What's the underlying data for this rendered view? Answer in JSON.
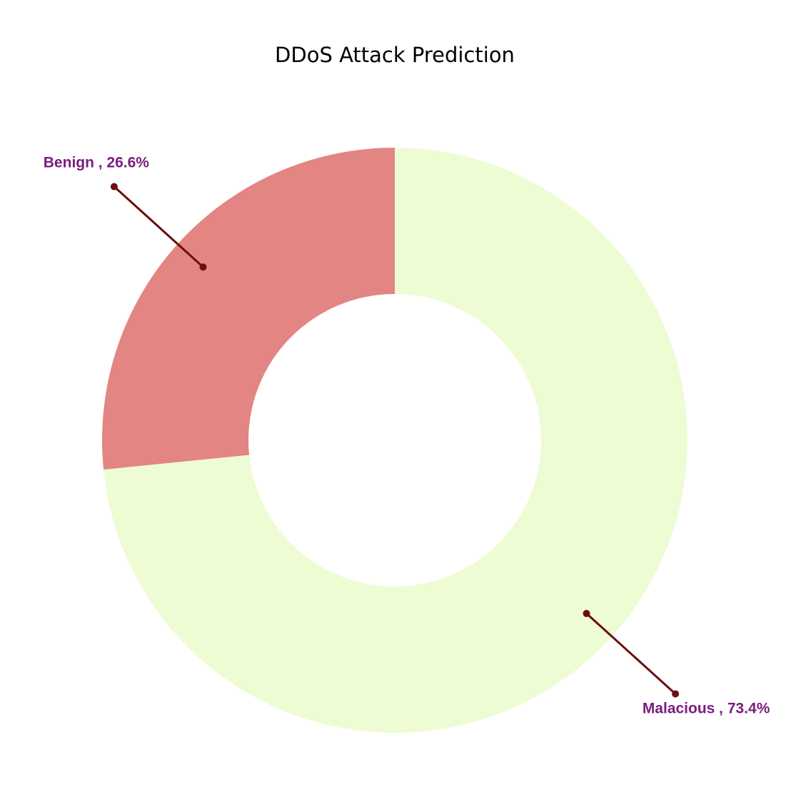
{
  "chart_data": {
    "type": "pie",
    "title": "DDoS Attack Prediction",
    "hole": true,
    "categories": [
      "Malacious",
      "Benign"
    ],
    "values": [
      73.4,
      26.6
    ],
    "unit": "%",
    "labels": [
      "Malacious , 73.4%",
      "Benign , 26.6%"
    ],
    "colors": [
      "#EDFCD3",
      "#E38582"
    ],
    "label_color": "#7A1C7E",
    "leader_color": "#6B0F0F",
    "start": "12 o'clock",
    "direction": "clockwise"
  }
}
